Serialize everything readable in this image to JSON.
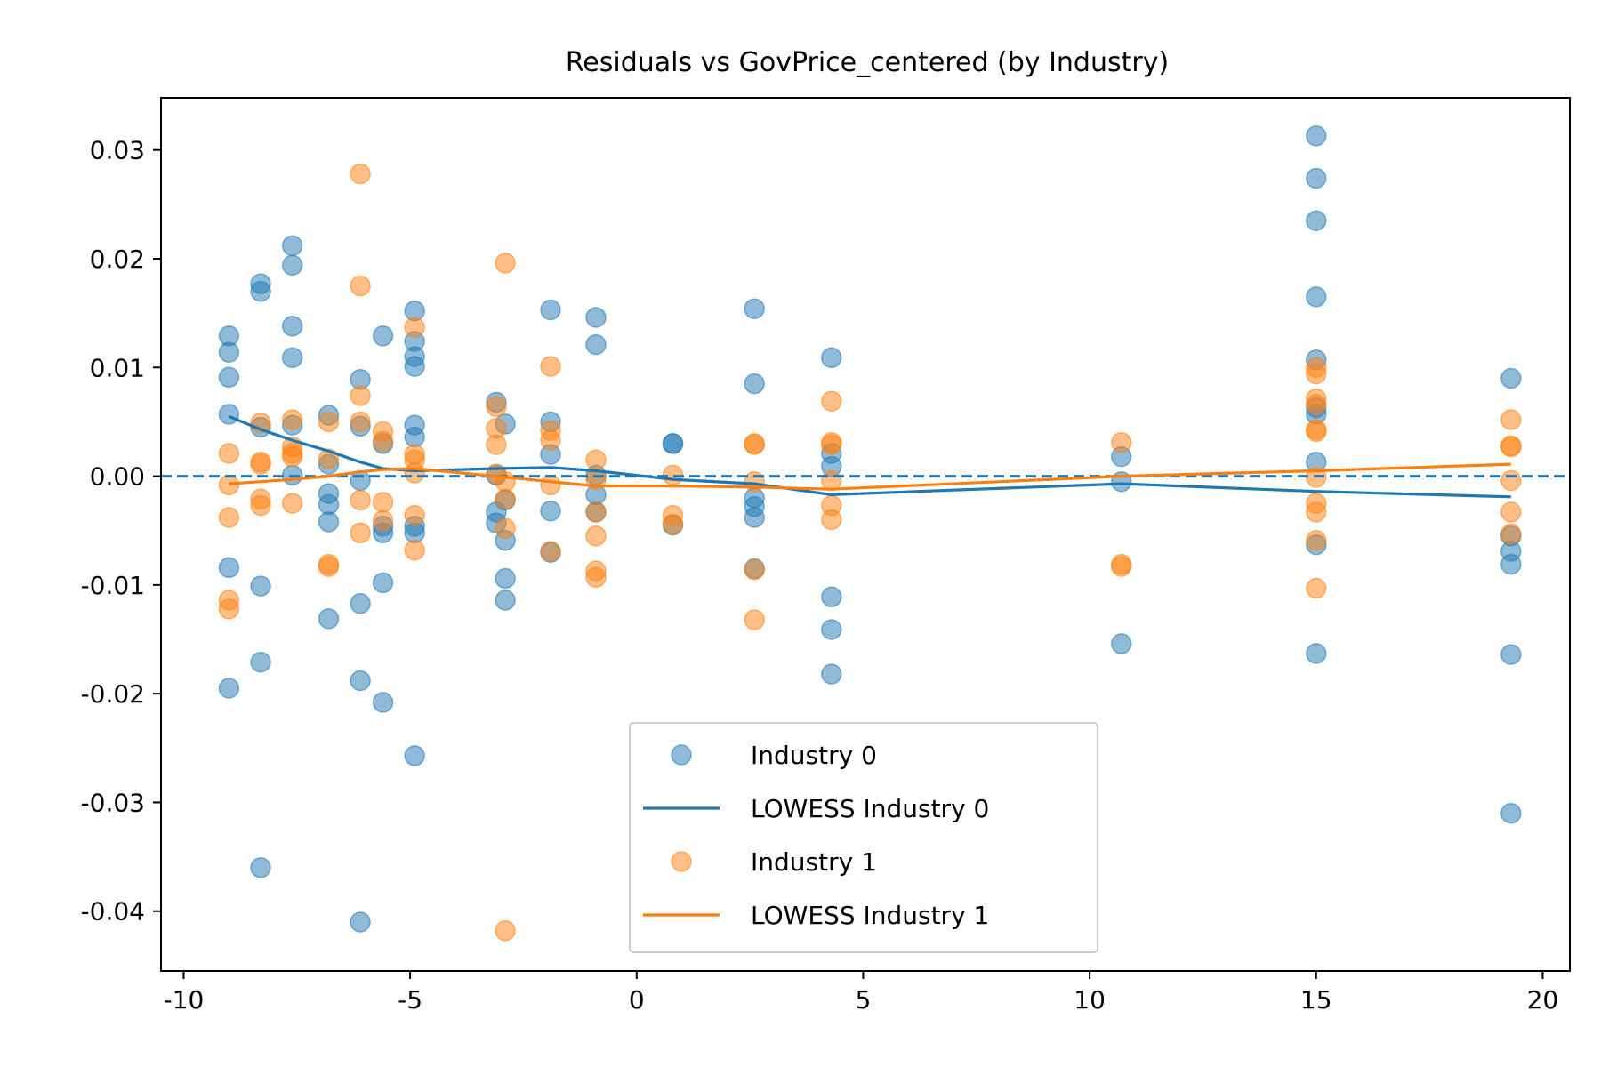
{
  "chart_data": {
    "type": "scatter",
    "title": "Residuals vs GovPrice_centered (by Industry)",
    "xlabel": "",
    "ylabel": "",
    "xlim": [
      -10.5,
      20.6
    ],
    "ylim": [
      -0.0455,
      0.0348
    ],
    "xticks": [
      -10,
      -5,
      0,
      5,
      10,
      15,
      20
    ],
    "xtick_labels": [
      "-10",
      "-5",
      "0",
      "5",
      "10",
      "15",
      "20"
    ],
    "yticks": [
      0.03,
      0.02,
      0.01,
      0.0,
      -0.01,
      -0.02,
      -0.03,
      -0.04
    ],
    "ytick_labels": [
      "0.03",
      "0.02",
      "0.01",
      "0.00",
      "-0.01",
      "-0.02",
      "-0.03",
      "-0.04"
    ],
    "grid": false,
    "reference_line": {
      "y": 0.0,
      "style": "dashed",
      "color": "#1f77b4"
    },
    "legend_position": "bottom-center",
    "series": [
      {
        "name": "Industry 0",
        "kind": "scatter",
        "color": "#1f77b4",
        "points": [
          [
            -9.0,
            0.0129
          ],
          [
            -9.0,
            0.0114
          ],
          [
            -9.0,
            0.0091
          ],
          [
            -9.0,
            0.0057
          ],
          [
            -9.0,
            -0.0084
          ],
          [
            -9.0,
            -0.0195
          ],
          [
            -8.3,
            0.0177
          ],
          [
            -8.3,
            0.017
          ],
          [
            -8.3,
            0.0045
          ],
          [
            -8.3,
            -0.0101
          ],
          [
            -8.3,
            -0.0171
          ],
          [
            -8.3,
            -0.036
          ],
          [
            -7.6,
            0.0212
          ],
          [
            -7.6,
            0.0194
          ],
          [
            -7.6,
            0.0138
          ],
          [
            -7.6,
            0.0109
          ],
          [
            -7.6,
            0.0047
          ],
          [
            -7.6,
            0.0001
          ],
          [
            -6.8,
            0.0056
          ],
          [
            -6.8,
            0.0011
          ],
          [
            -6.8,
            -0.0016
          ],
          [
            -6.8,
            -0.0026
          ],
          [
            -6.8,
            -0.0042
          ],
          [
            -6.8,
            -0.0131
          ],
          [
            -6.1,
            0.0089
          ],
          [
            -6.1,
            0.0046
          ],
          [
            -6.1,
            -0.0004
          ],
          [
            -6.1,
            -0.0117
          ],
          [
            -6.1,
            -0.0188
          ],
          [
            -6.1,
            -0.041
          ],
          [
            -5.6,
            0.0129
          ],
          [
            -5.6,
            0.003
          ],
          [
            -5.6,
            -0.0046
          ],
          [
            -5.6,
            -0.0052
          ],
          [
            -5.6,
            -0.0098
          ],
          [
            -5.6,
            -0.0208
          ],
          [
            -4.9,
            0.0152
          ],
          [
            -4.9,
            0.0124
          ],
          [
            -4.9,
            0.011
          ],
          [
            -4.9,
            0.0101
          ],
          [
            -4.9,
            0.0047
          ],
          [
            -4.9,
            0.0036
          ],
          [
            -4.9,
            -0.0046
          ],
          [
            -4.9,
            -0.0052
          ],
          [
            -4.9,
            -0.0257
          ],
          [
            -3.1,
            0.0068
          ],
          [
            -3.1,
            0.0001
          ],
          [
            -3.1,
            -0.0033
          ],
          [
            -3.1,
            -0.0043
          ],
          [
            -2.9,
            0.0048
          ],
          [
            -2.9,
            -0.0022
          ],
          [
            -2.9,
            -0.0059
          ],
          [
            -2.9,
            -0.0094
          ],
          [
            -2.9,
            -0.0114
          ],
          [
            -1.9,
            0.0153
          ],
          [
            -1.9,
            0.005
          ],
          [
            -1.9,
            0.002
          ],
          [
            -1.9,
            -0.0032
          ],
          [
            -1.9,
            -0.007
          ],
          [
            -0.9,
            0.0146
          ],
          [
            -0.9,
            0.0121
          ],
          [
            -0.9,
            0.0001
          ],
          [
            -0.9,
            -0.0017
          ],
          [
            -0.9,
            -0.0033
          ],
          [
            0.8,
            0.003
          ],
          [
            0.8,
            0.003
          ],
          [
            0.8,
            -0.0045
          ],
          [
            2.6,
            0.0154
          ],
          [
            2.6,
            0.0085
          ],
          [
            2.6,
            -0.002
          ],
          [
            2.6,
            -0.0028
          ],
          [
            2.6,
            -0.0038
          ],
          [
            2.6,
            -0.0085
          ],
          [
            4.3,
            0.0109
          ],
          [
            4.3,
            0.0021
          ],
          [
            4.3,
            0.0009
          ],
          [
            4.3,
            -0.0111
          ],
          [
            4.3,
            -0.0141
          ],
          [
            4.3,
            -0.0182
          ],
          [
            10.7,
            0.0018
          ],
          [
            10.7,
            -0.0005
          ],
          [
            10.7,
            -0.0154
          ],
          [
            15.0,
            0.0313
          ],
          [
            15.0,
            0.0274
          ],
          [
            15.0,
            0.0235
          ],
          [
            15.0,
            0.0165
          ],
          [
            15.0,
            0.0107
          ],
          [
            15.0,
            0.0063
          ],
          [
            15.0,
            0.0057
          ],
          [
            15.0,
            0.0013
          ],
          [
            15.0,
            -0.0063
          ],
          [
            15.0,
            -0.0163
          ],
          [
            19.3,
            0.009
          ],
          [
            19.3,
            -0.0055
          ],
          [
            19.3,
            -0.0069
          ],
          [
            19.3,
            -0.0081
          ],
          [
            19.3,
            -0.0164
          ],
          [
            19.3,
            -0.031
          ]
        ]
      },
      {
        "name": "LOWESS Industry 0",
        "kind": "line",
        "color": "#1f77b4",
        "points": [
          [
            -9.0,
            0.0055
          ],
          [
            -8.3,
            0.0043
          ],
          [
            -7.6,
            0.0033
          ],
          [
            -6.8,
            0.0023
          ],
          [
            -6.1,
            0.0013
          ],
          [
            -5.6,
            0.0007
          ],
          [
            -4.9,
            0.0005
          ],
          [
            -3.1,
            0.0007
          ],
          [
            -1.9,
            0.0008
          ],
          [
            -0.9,
            0.0005
          ],
          [
            0.8,
            -0.0003
          ],
          [
            2.6,
            -0.0007
          ],
          [
            4.3,
            -0.0017
          ],
          [
            10.7,
            -0.0007
          ],
          [
            15.0,
            -0.0014
          ],
          [
            19.3,
            -0.0019
          ]
        ]
      },
      {
        "name": "Industry 1",
        "kind": "scatter",
        "color": "#ff7f0e",
        "points": [
          [
            -9.0,
            0.0021
          ],
          [
            -9.0,
            -0.0008
          ],
          [
            -9.0,
            -0.0038
          ],
          [
            -9.0,
            -0.0114
          ],
          [
            -9.0,
            -0.0122
          ],
          [
            -8.3,
            0.0049
          ],
          [
            -8.3,
            0.0013
          ],
          [
            -8.3,
            0.0011
          ],
          [
            -8.3,
            -0.0021
          ],
          [
            -8.3,
            -0.0027
          ],
          [
            -7.6,
            0.0052
          ],
          [
            -7.6,
            0.0027
          ],
          [
            -7.6,
            0.0021
          ],
          [
            -7.6,
            0.0018
          ],
          [
            -7.6,
            -0.0025
          ],
          [
            -6.8,
            0.005
          ],
          [
            -6.8,
            0.0016
          ],
          [
            -6.8,
            -0.0081
          ],
          [
            -6.8,
            -0.0083
          ],
          [
            -6.1,
            0.0278
          ],
          [
            -6.1,
            0.0175
          ],
          [
            -6.1,
            0.0074
          ],
          [
            -6.1,
            0.005
          ],
          [
            -6.1,
            -0.0022
          ],
          [
            -6.1,
            -0.0052
          ],
          [
            -5.6,
            0.0041
          ],
          [
            -5.6,
            0.0032
          ],
          [
            -5.6,
            -0.0024
          ],
          [
            -5.6,
            -0.0041
          ],
          [
            -4.9,
            0.0137
          ],
          [
            -4.9,
            0.002
          ],
          [
            -4.9,
            0.0015
          ],
          [
            -4.9,
            0.0003
          ],
          [
            -4.9,
            -0.0036
          ],
          [
            -4.9,
            -0.0068
          ],
          [
            -3.1,
            0.0064
          ],
          [
            -3.1,
            0.0044
          ],
          [
            -3.1,
            0.0029
          ],
          [
            -3.1,
            0.0002
          ],
          [
            -2.9,
            0.0196
          ],
          [
            -2.9,
            -0.0005
          ],
          [
            -2.9,
            -0.0021
          ],
          [
            -2.9,
            -0.0048
          ],
          [
            -2.9,
            -0.0418
          ],
          [
            -1.9,
            0.0101
          ],
          [
            -1.9,
            0.0042
          ],
          [
            -1.9,
            0.0033
          ],
          [
            -1.9,
            -0.0008
          ],
          [
            -1.9,
            -0.0069
          ],
          [
            -0.9,
            0.0015
          ],
          [
            -0.9,
            -0.0003
          ],
          [
            -0.9,
            -0.0033
          ],
          [
            -0.9,
            -0.0055
          ],
          [
            -0.9,
            -0.0087
          ],
          [
            -0.9,
            -0.0093
          ],
          [
            0.8,
            0.0001
          ],
          [
            0.8,
            -0.0036
          ],
          [
            0.8,
            -0.0044
          ],
          [
            2.6,
            0.003
          ],
          [
            2.6,
            0.0029
          ],
          [
            2.6,
            -0.0005
          ],
          [
            2.6,
            -0.0086
          ],
          [
            2.6,
            -0.0132
          ],
          [
            4.3,
            0.0069
          ],
          [
            4.3,
            0.0031
          ],
          [
            4.3,
            0.0029
          ],
          [
            4.3,
            -0.0004
          ],
          [
            4.3,
            -0.0027
          ],
          [
            4.3,
            -0.004
          ],
          [
            10.7,
            0.0031
          ],
          [
            10.7,
            -0.0081
          ],
          [
            10.7,
            -0.0083
          ],
          [
            15.0,
            0.01
          ],
          [
            15.0,
            0.0094
          ],
          [
            15.0,
            0.0071
          ],
          [
            15.0,
            0.0066
          ],
          [
            15.0,
            0.0043
          ],
          [
            15.0,
            0.0041
          ],
          [
            15.0,
            -0.0001
          ],
          [
            15.0,
            -0.0025
          ],
          [
            15.0,
            -0.0033
          ],
          [
            15.0,
            -0.0059
          ],
          [
            15.0,
            -0.0103
          ],
          [
            19.3,
            0.0052
          ],
          [
            19.3,
            0.0028
          ],
          [
            19.3,
            0.0027
          ],
          [
            19.3,
            -0.0004
          ],
          [
            19.3,
            -0.0033
          ],
          [
            19.3,
            -0.0053
          ]
        ]
      },
      {
        "name": "LOWESS Industry 1",
        "kind": "line",
        "color": "#ff7f0e",
        "points": [
          [
            -9.0,
            -0.0007
          ],
          [
            -8.3,
            -0.0005
          ],
          [
            -7.6,
            -0.0003
          ],
          [
            -6.8,
            0.0
          ],
          [
            -6.1,
            0.0004
          ],
          [
            -5.6,
            0.0006
          ],
          [
            -4.9,
            0.0007
          ],
          [
            -3.1,
            0.0
          ],
          [
            -1.9,
            -0.0005
          ],
          [
            -0.9,
            -0.0009
          ],
          [
            0.8,
            -0.0009
          ],
          [
            2.6,
            -0.001
          ],
          [
            4.3,
            -0.0012
          ],
          [
            10.7,
            0.0
          ],
          [
            15.0,
            0.0005
          ],
          [
            19.3,
            0.0011
          ]
        ]
      }
    ]
  }
}
